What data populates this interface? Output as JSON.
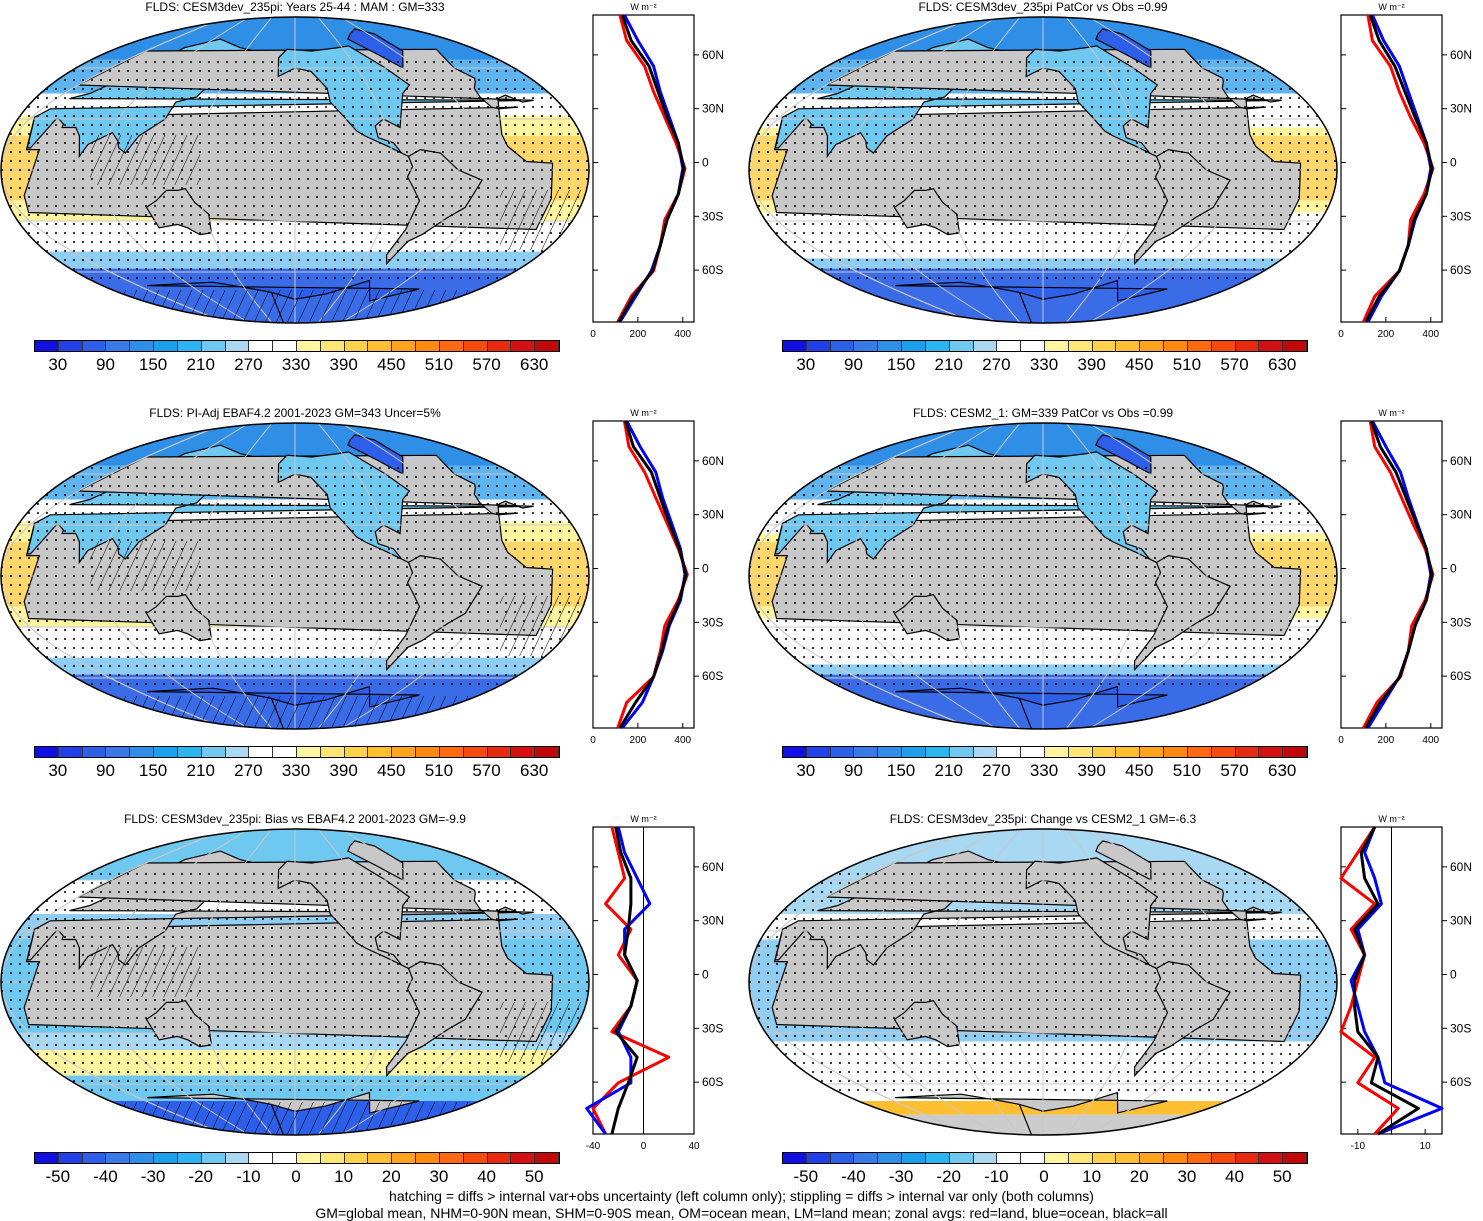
{
  "panels": [
    {
      "id": "p1",
      "title": "FLDS: CESM3dev_235pi: Years 25-44 : MAM : GM=333",
      "kind": "mean",
      "xticks": [
        "0",
        "200",
        "400"
      ],
      "hatched": true
    },
    {
      "id": "p2",
      "title": "FLDS: CESM3dev_235pi PatCor vs Obs =0.99",
      "kind": "mean",
      "xticks": [
        "0",
        "200",
        "400"
      ],
      "hatched": false
    },
    {
      "id": "p3",
      "title": "FLDS: PI-Adj EBAF4.2 2001-2023 GM=343 Uncer=5%",
      "kind": "mean",
      "xticks": [
        "0",
        "200",
        "400"
      ],
      "hatched": true
    },
    {
      "id": "p4",
      "title": "FLDS: CESM2_1: GM=339 PatCor vs Obs =0.99",
      "kind": "mean",
      "xticks": [
        "0",
        "200",
        "400"
      ],
      "hatched": false
    },
    {
      "id": "p5",
      "title": "FLDS: CESM3dev_235pi: Bias vs EBAF4.2 2001-2023 GM=-9.9",
      "kind": "diff",
      "xticks": [
        "-40",
        "0",
        "40"
      ],
      "hatched": true
    },
    {
      "id": "p6",
      "title": "FLDS: CESM3dev_235pi: Change vs CESM2_1 GM=-6.3",
      "kind": "diff",
      "xticks": [
        "-10",
        "10"
      ],
      "hatched": false
    }
  ],
  "zonal_units": "W m⁻²",
  "lat_labels": [
    "60N",
    "30N",
    "0",
    "30S",
    "60S"
  ],
  "colorbar_mean_labels": [
    "30",
    "90",
    "150",
    "210",
    "270",
    "330",
    "390",
    "450",
    "510",
    "570",
    "630"
  ],
  "colorbar_diff_labels": [
    "-50",
    "-40",
    "-30",
    "-20",
    "-10",
    "0",
    "10",
    "20",
    "30",
    "40",
    "50"
  ],
  "colorbar_mean_colors": [
    "#1010e0",
    "#2040e8",
    "#2e5fe8",
    "#3a7ae8",
    "#2f8ee6",
    "#1aa0ea",
    "#2bb5f0",
    "#6ec8f0",
    "#a9d8f2",
    "#ffffff",
    "#ffffff",
    "#fff4a0",
    "#ffe676",
    "#ffd14a",
    "#ffbf30",
    "#ffa41c",
    "#ff8a10",
    "#ff6a10",
    "#f54a10",
    "#e82a10",
    "#d41010",
    "#c00808"
  ],
  "colorbar_diff_colors": [
    "#1010e0",
    "#2040e8",
    "#2e5fe8",
    "#3a7ae8",
    "#2f8ee6",
    "#1aa0ea",
    "#2bb5f0",
    "#6ec8f0",
    "#a9d8f2",
    "#ffffff",
    "#ffffff",
    "#fff4a0",
    "#ffe676",
    "#ffd14a",
    "#ffbf30",
    "#ffa41c",
    "#ff8a10",
    "#ff6a10",
    "#f54a10",
    "#e82a10",
    "#d41010",
    "#c00808"
  ],
  "line_colors": {
    "land": "#ff0000",
    "ocean": "#0000ff",
    "all": "#000000"
  },
  "footer_line1": "hatching = diffs > internal var+obs uncertainty (left column only); stippling = diffs > internal var only (both columns)",
  "footer_line2": "GM=global mean, NHM=0-90N mean, SHM=0-90S mean, OM=ocean mean, LM=land mean; zonal avgs: red=land, blue=ocean, black=all",
  "zonal_data": {
    "lat": [
      90,
      75,
      60,
      45,
      30,
      15,
      0,
      -15,
      -30,
      -45,
      -60,
      -75,
      -90
    ],
    "p1": {
      "land": [
        120,
        150,
        230,
        270,
        320,
        370,
        410,
        380,
        320,
        300,
        270,
        170,
        110
      ],
      "ocean": [
        140,
        200,
        270,
        300,
        340,
        380,
        400,
        380,
        330,
        300,
        260,
        190,
        120
      ],
      "all": [
        130,
        170,
        250,
        290,
        330,
        380,
        405,
        380,
        330,
        300,
        265,
        180,
        115
      ]
    },
    "p2": {
      "land": [
        120,
        140,
        220,
        260,
        310,
        370,
        410,
        370,
        310,
        300,
        260,
        150,
        100
      ],
      "ocean": [
        140,
        190,
        260,
        300,
        340,
        380,
        400,
        380,
        330,
        300,
        260,
        180,
        120
      ],
      "all": [
        130,
        170,
        240,
        285,
        330,
        380,
        405,
        380,
        325,
        300,
        260,
        170,
        110
      ]
    },
    "p3": {
      "land": [
        140,
        160,
        230,
        280,
        330,
        380,
        420,
        380,
        320,
        300,
        270,
        150,
        110
      ],
      "ocean": [
        150,
        210,
        280,
        310,
        350,
        390,
        410,
        390,
        340,
        310,
        270,
        220,
        130
      ],
      "all": [
        145,
        180,
        260,
        300,
        340,
        385,
        415,
        385,
        335,
        305,
        270,
        190,
        120
      ]
    },
    "p4": {
      "land": [
        130,
        150,
        220,
        270,
        320,
        375,
        410,
        375,
        315,
        300,
        265,
        160,
        100
      ],
      "ocean": [
        140,
        200,
        265,
        300,
        340,
        380,
        400,
        380,
        330,
        300,
        260,
        190,
        120
      ],
      "all": [
        135,
        175,
        245,
        290,
        335,
        380,
        405,
        380,
        330,
        300,
        262,
        175,
        110
      ]
    },
    "p5": {
      "land": [
        -25,
        -20,
        -15,
        -30,
        -10,
        -20,
        -5,
        -10,
        -25,
        20,
        -20,
        -40,
        -30
      ],
      "ocean": [
        -20,
        -15,
        -5,
        5,
        -15,
        -15,
        -5,
        -10,
        -20,
        -10,
        -10,
        -45,
        -30
      ],
      "all": [
        -22,
        -18,
        -10,
        -10,
        -12,
        -15,
        -5,
        -10,
        -22,
        -5,
        -12,
        -20,
        -25
      ]
    },
    "p6": {
      "land": [
        -5,
        -10,
        -15,
        -5,
        -12,
        -8,
        -10,
        -12,
        -15,
        -5,
        -10,
        2,
        -5
      ],
      "ocean": [
        -5,
        -8,
        -5,
        -3,
        -10,
        -8,
        -12,
        -10,
        -8,
        -4,
        -2,
        15,
        -4
      ],
      "all": [
        -5,
        -9,
        -8,
        -4,
        -11,
        -8,
        -11,
        -11,
        -10,
        -4,
        -6,
        8,
        -4
      ]
    }
  }
}
